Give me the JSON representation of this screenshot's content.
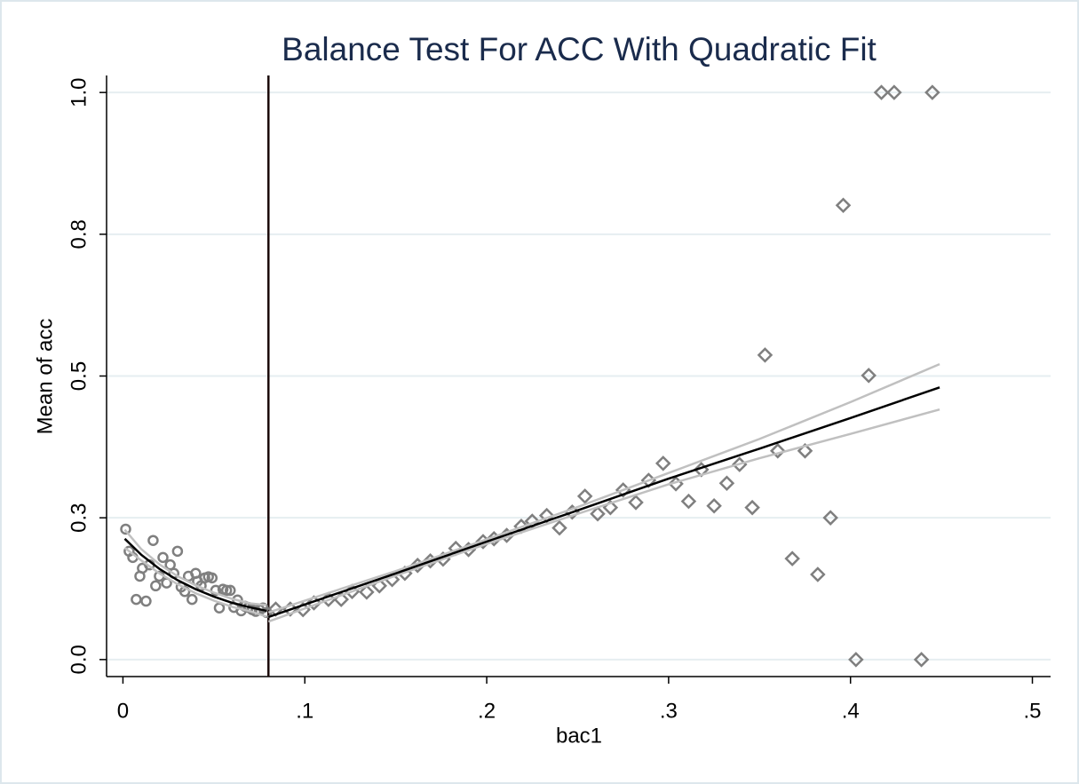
{
  "chart_data": {
    "type": "scatter",
    "title": "Balance Test For ACC With Quadratic Fit",
    "x_label": "bac1",
    "y_label": "Mean of acc",
    "xlim": [
      -0.009,
      0.51
    ],
    "ylim": [
      -0.03,
      1.03
    ],
    "xticks": [
      0,
      {
        "value": 0.1,
        "label": ".1"
      },
      {
        "value": 0.2,
        "label": ".2"
      },
      {
        "value": 0.3,
        "label": ".3"
      },
      {
        "value": 0.4,
        "label": ".4"
      },
      {
        "value": 0.5,
        "label": ".5"
      }
    ],
    "yticks": [
      {
        "value": 0,
        "label": "0.0"
      },
      {
        "value": 0.25,
        "label": "0.3"
      },
      {
        "value": 0.5,
        "label": "0.5"
      },
      {
        "value": 0.75,
        "label": "0.8"
      },
      {
        "value": 1,
        "label": "1.0"
      }
    ],
    "grid": true,
    "xline": 0.08,
    "xline_color": "#1a0a0a",
    "series": [
      {
        "type": "scatter",
        "marker": "circle",
        "color": "#7f7f7f",
        "x": [
          0.0015,
          0.0034,
          0.0054,
          0.0073,
          0.0093,
          0.0107,
          0.0127,
          0.0146,
          0.0166,
          0.018,
          0.02,
          0.022,
          0.024,
          0.026,
          0.028,
          0.03,
          0.032,
          0.034,
          0.036,
          0.038,
          0.04,
          0.041,
          0.043,
          0.045,
          0.047,
          0.049,
          0.051,
          0.053,
          0.055,
          0.057,
          0.059,
          0.061,
          0.063,
          0.065,
          0.067,
          0.069,
          0.071,
          0.073,
          0.075,
          0.077,
          0.079
        ],
        "values": [
          0.23,
          0.191,
          0.18,
          0.106,
          0.147,
          0.161,
          0.103,
          0.167,
          0.21,
          0.13,
          0.147,
          0.18,
          0.135,
          0.167,
          0.152,
          0.191,
          0.128,
          0.12,
          0.147,
          0.106,
          0.152,
          0.138,
          0.13,
          0.144,
          0.146,
          0.144,
          0.122,
          0.091,
          0.124,
          0.122,
          0.122,
          0.092,
          0.105,
          0.086,
          0.094,
          0.092,
          0.088,
          0.085,
          0.088,
          0.091,
          0.083
        ]
      },
      {
        "type": "scatter",
        "marker": "diamond",
        "color": "#7f7f7f",
        "x": [
          0.084,
          0.092,
          0.099,
          0.105,
          0.113,
          0.12,
          0.126,
          0.134,
          0.141,
          0.148,
          0.155,
          0.162,
          0.169,
          0.176,
          0.183,
          0.19,
          0.198,
          0.204,
          0.211,
          0.219,
          0.225,
          0.233,
          0.24,
          0.247,
          0.254,
          0.261,
          0.268,
          0.275,
          0.282,
          0.289,
          0.297,
          0.304,
          0.311,
          0.318,
          0.325,
          0.332,
          0.339,
          0.346,
          0.353,
          0.36,
          0.368,
          0.375,
          0.382,
          0.389,
          0.396,
          0.403,
          0.41,
          0.417,
          0.424,
          0.439,
          0.445
        ],
        "values": [
          0.089,
          0.089,
          0.088,
          0.1,
          0.106,
          0.106,
          0.12,
          0.119,
          0.13,
          0.141,
          0.152,
          0.166,
          0.174,
          0.177,
          0.196,
          0.194,
          0.208,
          0.213,
          0.219,
          0.235,
          0.244,
          0.254,
          0.232,
          0.26,
          0.288,
          0.257,
          0.268,
          0.299,
          0.277,
          0.316,
          0.346,
          0.31,
          0.279,
          0.335,
          0.271,
          0.311,
          0.344,
          0.268,
          0.537,
          0.368,
          0.178,
          0.368,
          0.15,
          0.25,
          0.801,
          0,
          0.501,
          1,
          1,
          0,
          1
        ]
      },
      {
        "type": "line",
        "color": "#c0c0c0",
        "x": [
          0.001,
          0.01,
          0.02,
          0.03,
          0.04,
          0.05,
          0.06,
          0.07,
          0.079
        ],
        "values": [
          0.229,
          0.195,
          0.168,
          0.147,
          0.131,
          0.118,
          0.107,
          0.099,
          0.096
        ]
      },
      {
        "type": "line",
        "color": "#c0c0c0",
        "x": [
          0.001,
          0.01,
          0.02,
          0.03,
          0.04,
          0.05,
          0.06,
          0.07,
          0.079
        ],
        "values": [
          0.197,
          0.175,
          0.152,
          0.133,
          0.117,
          0.104,
          0.093,
          0.085,
          0.076
        ]
      },
      {
        "type": "line",
        "color": "#000000",
        "x": [
          0.001,
          0.01,
          0.02,
          0.03,
          0.04,
          0.05,
          0.06,
          0.07,
          0.079
        ],
        "values": [
          0.213,
          0.185,
          0.16,
          0.14,
          0.124,
          0.111,
          0.1,
          0.092,
          0.086
        ]
      },
      {
        "type": "line",
        "color": "#c0c0c0",
        "x": [
          0.08,
          0.15,
          0.2,
          0.25,
          0.3,
          0.35,
          0.4,
          0.449
        ],
        "values": [
          0.083,
          0.156,
          0.212,
          0.269,
          0.329,
          0.389,
          0.454,
          0.521
        ]
      },
      {
        "type": "line",
        "color": "#c0c0c0",
        "x": [
          0.08,
          0.15,
          0.2,
          0.25,
          0.3,
          0.35,
          0.4,
          0.449
        ],
        "values": [
          0.067,
          0.148,
          0.204,
          0.257,
          0.309,
          0.355,
          0.398,
          0.441
        ]
      },
      {
        "type": "line",
        "color": "#000000",
        "x": [
          0.08,
          0.15,
          0.2,
          0.25,
          0.3,
          0.35,
          0.4,
          0.449
        ],
        "values": [
          0.075,
          0.152,
          0.208,
          0.263,
          0.319,
          0.372,
          0.426,
          0.48
        ]
      }
    ]
  }
}
